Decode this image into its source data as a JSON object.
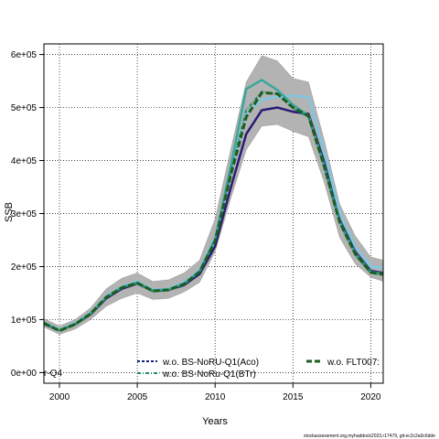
{
  "chart_data": {
    "type": "line",
    "xlabel": "Years",
    "ylabel": "SSB",
    "xlim": [
      1999,
      2020.8
    ],
    "ylim": [
      -20000,
      620000
    ],
    "xticks": [
      2000,
      2005,
      2010,
      2015,
      2020
    ],
    "xtick_labels": [
      "2000",
      "2005",
      "2010",
      "2015",
      "2020"
    ],
    "yticks": [
      0,
      100000,
      200000,
      300000,
      400000,
      500000,
      600000
    ],
    "ytick_labels": [
      "0e+00",
      "1e+05",
      "2e+05",
      "3e+05",
      "4e+05",
      "5e+05",
      "6e+05"
    ],
    "grid": true,
    "legend_position": "bottom",
    "colors": {
      "band": "#b3b3b3",
      "base": "#2a1a78",
      "aco": "#7ec8e3",
      "btr": "#1f8a70",
      "flt": "#1e5e1e",
      "teal": "#3aa79a"
    },
    "band": {
      "x": [
        1999,
        2000,
        2001,
        2002,
        2003,
        2004,
        2005,
        2006,
        2007,
        2008,
        2009,
        2010,
        2011,
        2012,
        2013,
        2014,
        2015,
        2016,
        2017,
        2018,
        2019,
        2020,
        2020.8
      ],
      "upper": [
        102000,
        88000,
        100000,
        122000,
        158000,
        178000,
        188000,
        172000,
        175000,
        188000,
        212000,
        290000,
        420000,
        548000,
        598000,
        588000,
        555000,
        548000,
        440000,
        318000,
        258000,
        218000,
        212000
      ],
      "lower": [
        86000,
        72000,
        82000,
        100000,
        125000,
        140000,
        150000,
        138000,
        140000,
        152000,
        170000,
        228000,
        328000,
        420000,
        465000,
        468000,
        455000,
        445000,
        360000,
        255000,
        205000,
        180000,
        172000
      ]
    },
    "series": [
      {
        "key": "base",
        "x": [
          1999,
          2000,
          2001,
          2002,
          2003,
          2004,
          2005,
          2006,
          2007,
          2008,
          2009,
          2010,
          2011,
          2012,
          2013,
          2014,
          2015,
          2016,
          2017,
          2018,
          2019,
          2020,
          2020.8
        ],
        "values": [
          92000,
          80000,
          91000,
          110000,
          140000,
          158000,
          168000,
          154000,
          156000,
          165000,
          186000,
          238000,
          348000,
          450000,
          495000,
          500000,
          492000,
          488000,
          398000,
          288000,
          228000,
          192000,
          188000
        ],
        "dash": ""
      },
      {
        "key": "aco",
        "name": "w.o. BS-NoRU-Q1(Aco)",
        "x": [
          1999,
          2000,
          2001,
          2002,
          2003,
          2004,
          2005,
          2006,
          2007,
          2008,
          2009,
          2010,
          2011,
          2012,
          2013,
          2014,
          2015,
          2016,
          2017,
          2018,
          2019,
          2020,
          2020.8
        ],
        "values": [
          95000,
          81000,
          93000,
          113000,
          144000,
          162000,
          172000,
          156000,
          158000,
          170000,
          193000,
          255000,
          378000,
          488000,
          515000,
          520000,
          522000,
          520000,
          418000,
          302000,
          238000,
          200000,
          198000
        ],
        "dash": ""
      },
      {
        "key": "teal",
        "x": [
          1999,
          2000,
          2001,
          2002,
          2003,
          2004,
          2005,
          2006,
          2007,
          2008,
          2009,
          2010,
          2011,
          2012,
          2013,
          2014,
          2015,
          2016,
          2017,
          2018,
          2019,
          2020,
          2020.8
        ],
        "values": [
          94000,
          80000,
          92000,
          112000,
          142000,
          161000,
          170000,
          155000,
          157000,
          168000,
          191000,
          252000,
          388000,
          535000,
          552000,
          533000,
          505000,
          485000,
          392000,
          285000,
          225000,
          190000,
          186000
        ],
        "dash": ""
      },
      {
        "key": "btr",
        "name": "w.o. BS-NoRu-Q1(BTr)",
        "x": [
          1999,
          2000,
          2001,
          2002,
          2003,
          2004,
          2005,
          2006,
          2007,
          2008,
          2009,
          2010,
          2011,
          2012,
          2013,
          2014,
          2015,
          2016,
          2017,
          2018,
          2019,
          2020,
          2020.8
        ],
        "values": [
          93000,
          79000,
          91000,
          110000,
          141000,
          160000,
          168000,
          153000,
          155000,
          166000,
          189000,
          250000,
          378000,
          495000,
          530000,
          525000,
          498000,
          482000,
          388000,
          282000,
          222000,
          188000,
          184000
        ],
        "dash": "4,2,1,2"
      },
      {
        "key": "flt",
        "name": "w.o. FLT007:",
        "x": [
          1999,
          2000,
          2001,
          2002,
          2003,
          2004,
          2005,
          2006,
          2007,
          2008,
          2009,
          2010,
          2011,
          2012,
          2013,
          2014,
          2015,
          2016,
          2017,
          2018,
          2019,
          2020,
          2020.8
        ],
        "values": [
          93000,
          79000,
          91000,
          111000,
          142000,
          160000,
          169000,
          154000,
          156000,
          167000,
          190000,
          248000,
          372000,
          482000,
          528000,
          526000,
          500000,
          484000,
          390000,
          284000,
          224000,
          189000,
          185000
        ],
        "dash": "7,3"
      }
    ],
    "extra_label": "r-Q4",
    "footer": "stockassessment.org,myhaddock2023,r17479, git:ec2c2a0c6dde"
  }
}
